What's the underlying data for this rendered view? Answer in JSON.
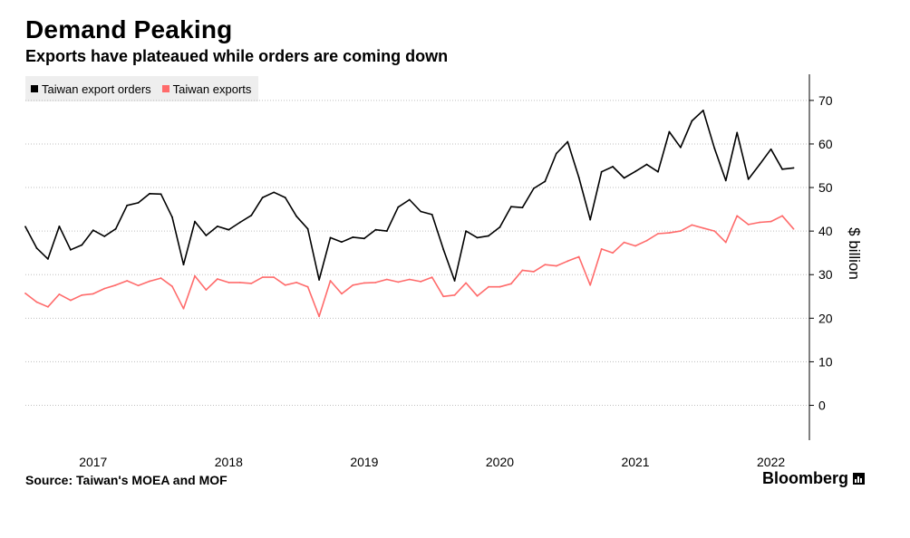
{
  "title": "Demand Peaking",
  "subtitle": "Exports have plateaued while orders are coming down",
  "source": "Source: Taiwan's MOEA and MOF",
  "brand": "Bloomberg",
  "brand_icon": "bloomberg-terminal-icon",
  "colors": {
    "orders": "#000000",
    "exports": "#ff6b6b",
    "grid": "#bfbfbf",
    "legend_bg": "#eeeeee"
  },
  "chart_data": {
    "type": "line",
    "title": "Demand Peaking",
    "subtitle": "Exports have plateaued while orders are coming down",
    "xlabel": "",
    "ylabel": "$ billion",
    "y_axis_position": "right",
    "ylim": [
      -8,
      76
    ],
    "yticks": [
      0,
      10,
      20,
      30,
      40,
      50,
      60,
      70
    ],
    "grid": true,
    "legend_position": "top-left",
    "x_start": "2016-07",
    "x_end": "2022-04",
    "x_tick_labels": [
      "2017",
      "2018",
      "2019",
      "2020",
      "2021",
      "2022"
    ],
    "x_ticks": [
      "2017-01",
      "2018-01",
      "2019-01",
      "2020-01",
      "2021-01",
      "2022-01"
    ],
    "series": [
      {
        "name": "Taiwan export orders",
        "color": "#000000",
        "values": [
          {
            "x": "2016-07",
            "y": 41.0
          },
          {
            "x": "2016-08",
            "y": 36.1
          },
          {
            "x": "2016-09",
            "y": 33.6
          },
          {
            "x": "2016-10",
            "y": 41.1
          },
          {
            "x": "2016-11",
            "y": 35.7
          },
          {
            "x": "2016-12",
            "y": 36.8
          },
          {
            "x": "2017-01",
            "y": 40.2
          },
          {
            "x": "2017-02",
            "y": 38.8
          },
          {
            "x": "2017-03",
            "y": 40.5
          },
          {
            "x": "2017-04",
            "y": 45.9
          },
          {
            "x": "2017-05",
            "y": 46.5
          },
          {
            "x": "2017-06",
            "y": 48.6
          },
          {
            "x": "2017-07",
            "y": 48.5
          },
          {
            "x": "2017-08",
            "y": 43.2
          },
          {
            "x": "2017-09",
            "y": 32.3
          },
          {
            "x": "2017-10",
            "y": 42.2
          },
          {
            "x": "2017-11",
            "y": 39.0
          },
          {
            "x": "2017-12",
            "y": 41.1
          },
          {
            "x": "2018-01",
            "y": 40.3
          },
          {
            "x": "2018-02",
            "y": 42.0
          },
          {
            "x": "2018-03",
            "y": 43.6
          },
          {
            "x": "2018-04",
            "y": 47.7
          },
          {
            "x": "2018-05",
            "y": 48.9
          },
          {
            "x": "2018-06",
            "y": 47.7
          },
          {
            "x": "2018-07",
            "y": 43.4
          },
          {
            "x": "2018-08",
            "y": 40.5
          },
          {
            "x": "2018-09",
            "y": 28.8
          },
          {
            "x": "2018-10",
            "y": 38.5
          },
          {
            "x": "2018-11",
            "y": 37.5
          },
          {
            "x": "2018-12",
            "y": 38.6
          },
          {
            "x": "2019-01",
            "y": 38.3
          },
          {
            "x": "2019-02",
            "y": 40.3
          },
          {
            "x": "2019-03",
            "y": 40.0
          },
          {
            "x": "2019-04",
            "y": 45.5
          },
          {
            "x": "2019-05",
            "y": 47.2
          },
          {
            "x": "2019-06",
            "y": 44.5
          },
          {
            "x": "2019-07",
            "y": 43.8
          },
          {
            "x": "2019-08",
            "y": 35.8
          },
          {
            "x": "2019-09",
            "y": 28.6
          },
          {
            "x": "2019-10",
            "y": 40.0
          },
          {
            "x": "2019-11",
            "y": 38.5
          },
          {
            "x": "2019-12",
            "y": 38.9
          },
          {
            "x": "2020-01",
            "y": 40.9
          },
          {
            "x": "2020-02",
            "y": 45.6
          },
          {
            "x": "2020-03",
            "y": 45.4
          },
          {
            "x": "2020-04",
            "y": 49.8
          },
          {
            "x": "2020-05",
            "y": 51.4
          },
          {
            "x": "2020-06",
            "y": 57.8
          },
          {
            "x": "2020-07",
            "y": 60.5
          },
          {
            "x": "2020-08",
            "y": 52.3
          },
          {
            "x": "2020-09",
            "y": 42.6
          },
          {
            "x": "2020-10",
            "y": 53.6
          },
          {
            "x": "2020-11",
            "y": 54.8
          },
          {
            "x": "2020-12",
            "y": 52.2
          },
          {
            "x": "2021-01",
            "y": 53.7
          },
          {
            "x": "2021-02",
            "y": 55.3
          },
          {
            "x": "2021-03",
            "y": 53.6
          },
          {
            "x": "2021-04",
            "y": 62.8
          },
          {
            "x": "2021-05",
            "y": 59.2
          },
          {
            "x": "2021-06",
            "y": 65.3
          },
          {
            "x": "2021-07",
            "y": 67.7
          },
          {
            "x": "2021-08",
            "y": 59.0
          },
          {
            "x": "2021-09",
            "y": 51.6
          },
          {
            "x": "2021-10",
            "y": 62.6
          },
          {
            "x": "2021-11",
            "y": 51.9
          },
          {
            "x": "2021-12",
            "y": 55.3
          },
          {
            "x": "2022-01",
            "y": 58.8
          },
          {
            "x": "2022-02",
            "y": 54.2
          },
          {
            "x": "2022-03",
            "y": 54.5
          }
        ]
      },
      {
        "name": "Taiwan exports",
        "color": "#ff6b6b",
        "values": [
          {
            "x": "2016-07",
            "y": 25.7
          },
          {
            "x": "2016-08",
            "y": 23.7
          },
          {
            "x": "2016-09",
            "y": 22.6
          },
          {
            "x": "2016-10",
            "y": 25.5
          },
          {
            "x": "2016-11",
            "y": 24.1
          },
          {
            "x": "2016-12",
            "y": 25.3
          },
          {
            "x": "2017-01",
            "y": 25.6
          },
          {
            "x": "2017-02",
            "y": 26.8
          },
          {
            "x": "2017-03",
            "y": 27.6
          },
          {
            "x": "2017-04",
            "y": 28.6
          },
          {
            "x": "2017-05",
            "y": 27.5
          },
          {
            "x": "2017-06",
            "y": 28.5
          },
          {
            "x": "2017-07",
            "y": 29.2
          },
          {
            "x": "2017-08",
            "y": 27.3
          },
          {
            "x": "2017-09",
            "y": 22.2
          },
          {
            "x": "2017-10",
            "y": 29.7
          },
          {
            "x": "2017-11",
            "y": 26.5
          },
          {
            "x": "2017-12",
            "y": 29.0
          },
          {
            "x": "2018-01",
            "y": 28.2
          },
          {
            "x": "2018-02",
            "y": 28.2
          },
          {
            "x": "2018-03",
            "y": 28.0
          },
          {
            "x": "2018-04",
            "y": 29.4
          },
          {
            "x": "2018-05",
            "y": 29.4
          },
          {
            "x": "2018-06",
            "y": 27.6
          },
          {
            "x": "2018-07",
            "y": 28.2
          },
          {
            "x": "2018-08",
            "y": 27.2
          },
          {
            "x": "2018-09",
            "y": 20.4
          },
          {
            "x": "2018-10",
            "y": 28.6
          },
          {
            "x": "2018-11",
            "y": 25.6
          },
          {
            "x": "2018-12",
            "y": 27.6
          },
          {
            "x": "2019-01",
            "y": 28.1
          },
          {
            "x": "2019-02",
            "y": 28.2
          },
          {
            "x": "2019-03",
            "y": 28.9
          },
          {
            "x": "2019-04",
            "y": 28.3
          },
          {
            "x": "2019-05",
            "y": 28.9
          },
          {
            "x": "2019-06",
            "y": 28.4
          },
          {
            "x": "2019-07",
            "y": 29.4
          },
          {
            "x": "2019-08",
            "y": 25.0
          },
          {
            "x": "2019-09",
            "y": 25.3
          },
          {
            "x": "2019-10",
            "y": 28.1
          },
          {
            "x": "2019-11",
            "y": 25.1
          },
          {
            "x": "2019-12",
            "y": 27.2
          },
          {
            "x": "2020-01",
            "y": 27.2
          },
          {
            "x": "2020-02",
            "y": 27.9
          },
          {
            "x": "2020-03",
            "y": 31.0
          },
          {
            "x": "2020-04",
            "y": 30.7
          },
          {
            "x": "2020-05",
            "y": 32.3
          },
          {
            "x": "2020-06",
            "y": 32.0
          },
          {
            "x": "2020-07",
            "y": 33.1
          },
          {
            "x": "2020-08",
            "y": 34.1
          },
          {
            "x": "2020-09",
            "y": 27.6
          },
          {
            "x": "2020-10",
            "y": 35.9
          },
          {
            "x": "2020-11",
            "y": 35.0
          },
          {
            "x": "2020-12",
            "y": 37.4
          },
          {
            "x": "2021-01",
            "y": 36.6
          },
          {
            "x": "2021-02",
            "y": 37.8
          },
          {
            "x": "2021-03",
            "y": 39.4
          },
          {
            "x": "2021-04",
            "y": 39.6
          },
          {
            "x": "2021-05",
            "y": 40.0
          },
          {
            "x": "2021-06",
            "y": 41.4
          },
          {
            "x": "2021-07",
            "y": 40.7
          },
          {
            "x": "2021-08",
            "y": 40.0
          },
          {
            "x": "2021-09",
            "y": 37.4
          },
          {
            "x": "2021-10",
            "y": 43.5
          },
          {
            "x": "2021-11",
            "y": 41.5
          },
          {
            "x": "2021-12",
            "y": 42.0
          },
          {
            "x": "2022-01",
            "y": 42.2
          },
          {
            "x": "2022-02",
            "y": 43.5
          },
          {
            "x": "2022-03",
            "y": 40.5
          }
        ]
      }
    ]
  }
}
